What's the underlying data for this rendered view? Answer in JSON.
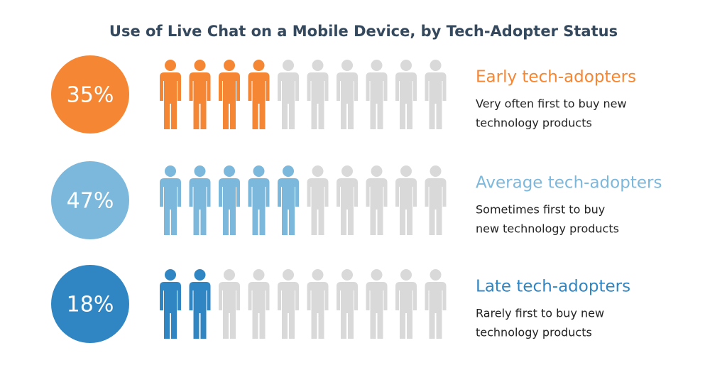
{
  "chart_data": {
    "type": "pictograph",
    "title": "Use of Live Chat on a Mobile Device, by Tech-Adopter Status",
    "categories": [
      "Early tech-adopters",
      "Average tech-adopters",
      "Late tech-adopters"
    ],
    "values": [
      35,
      47,
      18
    ],
    "value_labels": [
      "35%",
      "47%",
      "18%"
    ],
    "colors": [
      "#f58634",
      "#7cb8dc",
      "#2f86c3"
    ],
    "descriptions": [
      [
        "Very often first to buy new",
        "technology products"
      ],
      [
        "Sometimes first to buy",
        "new technology products"
      ],
      [
        "Rarely first to buy new",
        "technology products"
      ]
    ],
    "filled_icons": [
      4,
      5,
      2
    ],
    "icons_per_row": 10,
    "empty_color": "#d9d9d9"
  }
}
